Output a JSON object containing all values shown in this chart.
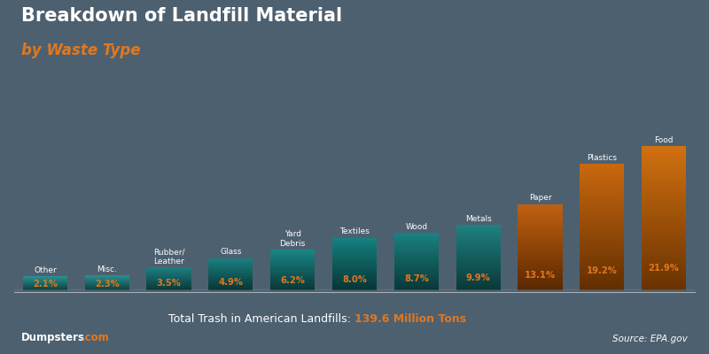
{
  "categories": [
    "Other",
    "Misc.",
    "Rubber/\nLeather",
    "Glass",
    "Yard\nDebris",
    "Textiles",
    "Wood",
    "Metals",
    "Paper",
    "Plastics",
    "Food"
  ],
  "values": [
    2.1,
    2.3,
    3.5,
    4.9,
    6.2,
    8.0,
    8.7,
    9.9,
    13.1,
    19.2,
    21.9
  ],
  "value_labels": [
    "2.1%",
    "2.3%",
    "3.5%",
    "4.9%",
    "6.2%",
    "8.0%",
    "8.7%",
    "9.9%",
    "13.1%",
    "19.2%",
    "21.9%"
  ],
  "bar_top_colors": [
    "#2a9090",
    "#2a9090",
    "#1e8080",
    "#1a8080",
    "#1a8585",
    "#168080",
    "#1a8080",
    "#1e8080",
    "#c06010",
    "#c86810",
    "#d07010"
  ],
  "bar_bot_colors": [
    "#0d4040",
    "#0d4040",
    "#0a3838",
    "#083535",
    "#083838",
    "#063535",
    "#083838",
    "#0a3838",
    "#5a2800",
    "#622e00",
    "#6a3200"
  ],
  "title_line1": "Breakdown of Landfill Material",
  "title_line2": "by Waste Type",
  "footer_normal": "Total Trash in American Landfills: ",
  "footer_bold": "139.6 Million Tons",
  "source_text": "Source: EPA.gov",
  "brand_white": "Dumpsters",
  "brand_orange": ".com®",
  "bg_color": "#4d6070",
  "title_color": "#ffffff",
  "subtitle_color": "#e07820",
  "label_color_orange": "#e07820",
  "label_color_white": "#ffffff",
  "footer_color": "#ffffff",
  "footer_bold_color": "#e07820",
  "ylim_max": 28,
  "bar_width": 0.72
}
